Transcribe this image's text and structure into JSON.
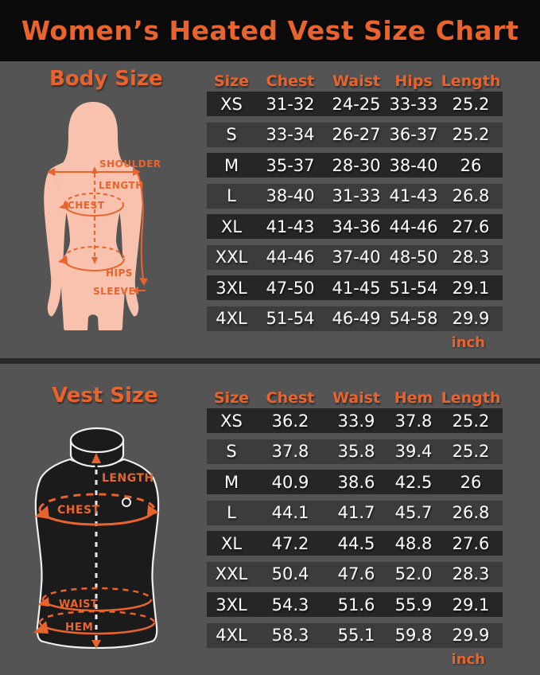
{
  "title": "Women’s Heated Vest Size Chart",
  "colors": {
    "accent_orange": "#E8642C",
    "page_background": "#545454",
    "header_background": "#0B0B0B",
    "row_dark": "#262626",
    "row_light": "#3C3C3C",
    "body_silhouette_fill": "#F8C2AE",
    "vest_fill": "#1B1B1B",
    "vest_outline": "#EFEFEF",
    "table_text": "#FDFDFD"
  },
  "body_section": {
    "heading": "Body Size",
    "unit": "inch",
    "diagram_labels": [
      "SHOULDER",
      "LENGTH",
      "CHEST",
      "HIPS",
      "SLEEVE"
    ],
    "table": {
      "headers": [
        "Size",
        "Chest",
        "Waist",
        "Hips",
        "Length"
      ],
      "rows": [
        [
          "XS",
          "31-32",
          "24-25",
          "33-33",
          "25.2"
        ],
        [
          "S",
          "33-34",
          "26-27",
          "36-37",
          "25.2"
        ],
        [
          "M",
          "35-37",
          "28-30",
          "38-40",
          "26"
        ],
        [
          "L",
          "38-40",
          "31-33",
          "41-43",
          "26.8"
        ],
        [
          "XL",
          "41-43",
          "34-36",
          "44-46",
          "27.6"
        ],
        [
          "XXL",
          "44-46",
          "37-40",
          "48-50",
          "28.3"
        ],
        [
          "3XL",
          "47-50",
          "41-45",
          "51-54",
          "29.1"
        ],
        [
          "4XL",
          "51-54",
          "46-49",
          "54-58",
          "29.9"
        ]
      ]
    }
  },
  "vest_section": {
    "heading": "Vest Size",
    "unit": "inch",
    "diagram_labels": [
      "LENGTH",
      "CHEST",
      "WAIST",
      "HEM"
    ],
    "table": {
      "headers": [
        "Size",
        "Chest",
        "Waist",
        "Hem",
        "Length"
      ],
      "rows": [
        [
          "XS",
          "36.2",
          "33.9",
          "37.8",
          "25.2"
        ],
        [
          "S",
          "37.8",
          "35.8",
          "39.4",
          "25.2"
        ],
        [
          "M",
          "40.9",
          "38.6",
          "42.5",
          "26"
        ],
        [
          "L",
          "44.1",
          "41.7",
          "45.7",
          "26.8"
        ],
        [
          "XL",
          "47.2",
          "44.5",
          "48.8",
          "27.6"
        ],
        [
          "XXL",
          "50.4",
          "47.6",
          "52.0",
          "28.3"
        ],
        [
          "3XL",
          "54.3",
          "51.6",
          "55.9",
          "29.1"
        ],
        [
          "4XL",
          "58.3",
          "55.1",
          "59.8",
          "29.9"
        ]
      ]
    }
  }
}
